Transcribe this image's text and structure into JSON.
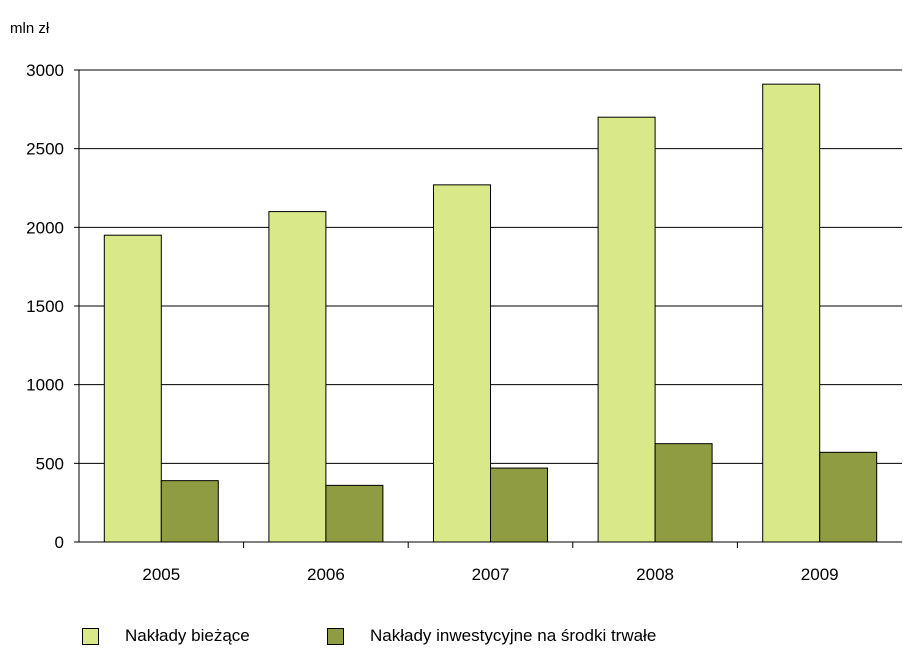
{
  "chart_data": {
    "type": "bar",
    "unit_label": "mln zł",
    "categories": [
      "2005",
      "2006",
      "2007",
      "2008",
      "2009"
    ],
    "series": [
      {
        "name": "Nakłady bieżące",
        "color": "#d9e98a",
        "values": [
          1950,
          2100,
          2270,
          2700,
          2910
        ]
      },
      {
        "name": "Nakłady inwestycyjne na środki trwałe",
        "color": "#8f9c42",
        "values": [
          390,
          360,
          470,
          625,
          570
        ]
      }
    ],
    "ylim": [
      0,
      3000
    ],
    "yticks": [
      "0",
      "500",
      "1000",
      "1500",
      "2000",
      "2500",
      "3000"
    ],
    "grid": true,
    "legend_position": "bottom"
  }
}
